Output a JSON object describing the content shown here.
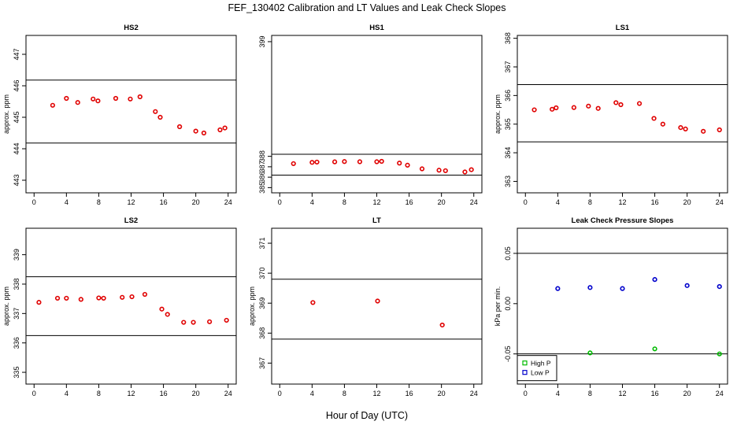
{
  "figure": {
    "title": "FEF_130402  Calibration and LT Values and Leak Check Slopes",
    "xlabel": "Hour of Day (UTC)"
  },
  "colors": {
    "red": "#e00000",
    "green": "#00bb00",
    "blue": "#0000cc",
    "axis": "#000000"
  },
  "chart_data": [
    {
      "type": "scatter",
      "title": "HS2",
      "ylabel": "approx. ppm",
      "xlim": [
        -1,
        25
      ],
      "ylim": [
        442.6,
        447.6
      ],
      "xticks": [
        0,
        4,
        8,
        12,
        16,
        20,
        24
      ],
      "yticks": [
        443,
        444,
        445,
        446,
        447
      ],
      "hlines": [
        444.18,
        446.18
      ],
      "series": [
        {
          "color": "red",
          "x": [
            2.3,
            4.0,
            5.4,
            7.3,
            7.9,
            10.1,
            11.9,
            13.1,
            15.0,
            15.6,
            18.0,
            20.0,
            21.0,
            23.0,
            23.6
          ],
          "y": [
            445.38,
            445.6,
            445.47,
            445.58,
            445.52,
            445.6,
            445.58,
            445.65,
            445.18,
            445.0,
            444.7,
            444.56,
            444.5,
            444.6,
            444.66
          ]
        }
      ]
    },
    {
      "type": "scatter",
      "title": "HS1",
      "ylabel": "",
      "xlim": [
        -1,
        25
      ],
      "ylim": [
        384.5,
        399.6
      ],
      "xticks": [
        0,
        4,
        8,
        12,
        16,
        20,
        24
      ],
      "yticks": [
        385,
        386,
        387,
        388,
        399
      ],
      "hlines": [
        386.2,
        388.2
      ],
      "series": [
        {
          "color": "red",
          "x": [
            1.7,
            4.0,
            4.6,
            6.8,
            8.0,
            9.9,
            12.0,
            12.6,
            14.8,
            15.8,
            17.6,
            19.7,
            20.5,
            22.9,
            23.7
          ],
          "y": [
            387.3,
            387.42,
            387.45,
            387.47,
            387.5,
            387.48,
            387.48,
            387.52,
            387.35,
            387.15,
            386.8,
            386.67,
            386.62,
            386.5,
            386.72
          ]
        }
      ]
    },
    {
      "type": "scatter",
      "title": "LS1",
      "ylabel": "approx. ppm",
      "xlim": [
        -1,
        25
      ],
      "ylim": [
        362.6,
        368.1
      ],
      "xticks": [
        0,
        4,
        8,
        12,
        16,
        20,
        24
      ],
      "yticks": [
        363,
        364,
        365,
        366,
        367,
        368
      ],
      "hlines": [
        364.38,
        366.38
      ],
      "series": [
        {
          "color": "red",
          "x": [
            1.1,
            3.3,
            3.8,
            6.0,
            7.8,
            9.0,
            11.2,
            11.8,
            14.1,
            15.9,
            17.0,
            19.2,
            19.8,
            22.0,
            24.0
          ],
          "y": [
            365.5,
            365.52,
            365.57,
            365.58,
            365.63,
            365.55,
            365.75,
            365.68,
            365.72,
            365.2,
            365.0,
            364.88,
            364.83,
            364.75,
            364.8
          ]
        }
      ]
    },
    {
      "type": "scatter",
      "title": "LS2",
      "ylabel": "approx. ppm",
      "xlim": [
        -1,
        25
      ],
      "ylim": [
        334.6,
        339.9
      ],
      "xticks": [
        0,
        4,
        8,
        12,
        16,
        20,
        24
      ],
      "yticks": [
        335,
        336,
        337,
        338,
        339
      ],
      "hlines": [
        336.25,
        338.25
      ],
      "series": [
        {
          "color": "red",
          "x": [
            0.6,
            2.9,
            4.0,
            5.8,
            8.0,
            8.6,
            10.9,
            12.1,
            13.7,
            15.8,
            16.5,
            18.5,
            19.7,
            21.7,
            23.8
          ],
          "y": [
            337.38,
            337.52,
            337.52,
            337.48,
            337.53,
            337.52,
            337.55,
            337.57,
            337.65,
            337.15,
            336.97,
            336.7,
            336.7,
            336.72,
            336.77
          ]
        }
      ]
    },
    {
      "type": "scatter",
      "title": "LT",
      "ylabel": "approx. ppm",
      "xlim": [
        -1,
        25
      ],
      "ylim": [
        366.3,
        371.5
      ],
      "xticks": [
        0,
        4,
        8,
        12,
        16,
        20,
        24
      ],
      "yticks": [
        367,
        368,
        369,
        370,
        371
      ],
      "hlines": [
        367.8,
        369.8
      ],
      "series": [
        {
          "color": "red",
          "x": [
            4.1,
            12.1,
            20.1
          ],
          "y": [
            369.02,
            369.07,
            368.27
          ]
        }
      ]
    },
    {
      "type": "scatter",
      "title": "Leak Check Pressure Slopes",
      "ylabel": "kPa per min.",
      "xlim": [
        -1,
        25
      ],
      "ylim": [
        -0.08,
        0.075
      ],
      "xticks": [
        0,
        4,
        8,
        12,
        16,
        20,
        24
      ],
      "yticks": [
        -0.05,
        0.0,
        0.05
      ],
      "ytick_labels": [
        "-0.05",
        "0.00",
        "0.05"
      ],
      "hlines": [
        -0.05,
        0.05
      ],
      "legend": {
        "position": "bottom-left",
        "entries": [
          {
            "label": "High P",
            "color": "green"
          },
          {
            "label": "Low P",
            "color": "blue"
          }
        ]
      },
      "series": [
        {
          "name": "High P",
          "color": "green",
          "x": [
            8.0,
            16.0,
            24.0
          ],
          "y": [
            -0.049,
            -0.045,
            -0.05
          ]
        },
        {
          "name": "Low P",
          "color": "blue",
          "x": [
            4.0,
            8.0,
            12.0,
            16.0,
            20.0,
            24.0
          ],
          "y": [
            0.015,
            0.016,
            0.015,
            0.024,
            0.018,
            0.017
          ]
        }
      ]
    }
  ]
}
